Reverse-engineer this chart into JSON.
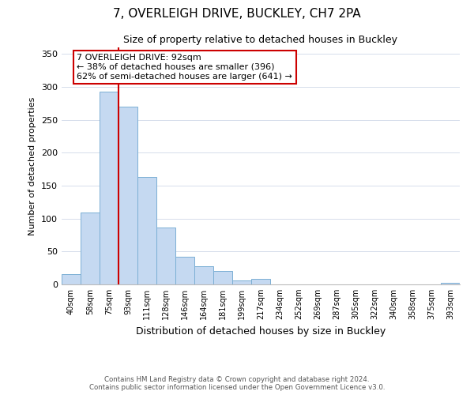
{
  "title": "7, OVERLEIGH DRIVE, BUCKLEY, CH7 2PA",
  "subtitle": "Size of property relative to detached houses in Buckley",
  "xlabel": "Distribution of detached houses by size in Buckley",
  "ylabel": "Number of detached properties",
  "categories": [
    "40sqm",
    "58sqm",
    "75sqm",
    "93sqm",
    "111sqm",
    "128sqm",
    "146sqm",
    "164sqm",
    "181sqm",
    "199sqm",
    "217sqm",
    "234sqm",
    "252sqm",
    "269sqm",
    "287sqm",
    "305sqm",
    "322sqm",
    "340sqm",
    "358sqm",
    "375sqm",
    "393sqm"
  ],
  "values": [
    16,
    109,
    293,
    270,
    163,
    86,
    42,
    28,
    21,
    6,
    8,
    0,
    0,
    0,
    0,
    0,
    0,
    0,
    0,
    0,
    2
  ],
  "bar_color": "#c5d9f1",
  "bar_edge_color": "#7bafd4",
  "vline_x": 2.5,
  "vline_color": "#cc0000",
  "annotation_title": "7 OVERLEIGH DRIVE: 92sqm",
  "annotation_line1": "← 38% of detached houses are smaller (396)",
  "annotation_line2": "62% of semi-detached houses are larger (641) →",
  "annotation_box_color": "#ffffff",
  "annotation_box_edge": "#cc0000",
  "ylim": [
    0,
    360
  ],
  "yticks": [
    0,
    50,
    100,
    150,
    200,
    250,
    300,
    350
  ],
  "background_color": "#ffffff",
  "footer_line1": "Contains HM Land Registry data © Crown copyright and database right 2024.",
  "footer_line2": "Contains public sector information licensed under the Open Government Licence v3.0."
}
